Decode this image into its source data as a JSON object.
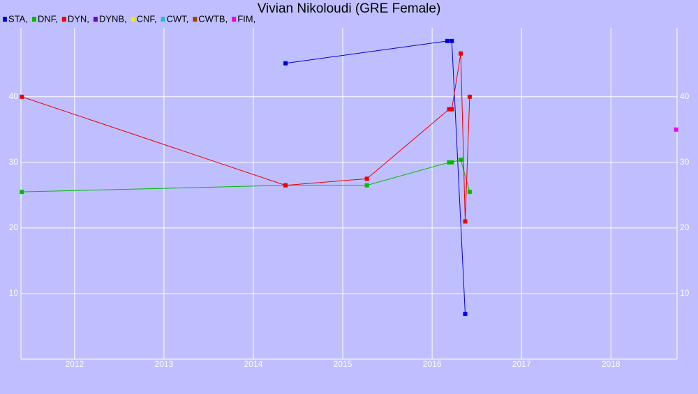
{
  "chart_data": {
    "type": "line",
    "title": "Vivian Nikoloudi (GRE Female)",
    "xlim": [
      2011.4,
      2018.74
    ],
    "ylim": [
      0,
      50.5
    ],
    "xticks": [
      2012,
      2013,
      2014,
      2015,
      2016,
      2017,
      2018
    ],
    "yticks": [
      10,
      20,
      30,
      40
    ],
    "grid": true,
    "series": [
      {
        "name": "STA,",
        "color": "#0000dd",
        "x": [
          2014.36,
          2016.17,
          2016.22,
          2016.37
        ],
        "values": [
          45.1,
          48.5,
          48.5,
          6.9
        ]
      },
      {
        "name": "DNF,",
        "color": "#00bb00",
        "x": [
          2011.41,
          2014.36,
          2015.27,
          2016.19,
          2016.22,
          2016.32,
          2016.42
        ],
        "values": [
          25.5,
          26.5,
          26.5,
          30,
          30,
          30.4,
          25.5
        ]
      },
      {
        "name": "DYN,",
        "color": "#ee0000",
        "x": [
          2011.41,
          2014.36,
          2015.27,
          2016.19,
          2016.22,
          2016.32,
          2016.37,
          2016.42
        ],
        "values": [
          40,
          26.5,
          27.5,
          38.1,
          38.1,
          46.6,
          21,
          40
        ]
      },
      {
        "name": "DYNB,",
        "color": "#6a00dd",
        "x": [],
        "values": []
      },
      {
        "name": "CNF,",
        "color": "#eeee00",
        "x": [],
        "values": []
      },
      {
        "name": "CWT,",
        "color": "#22bbdd",
        "x": [],
        "values": []
      },
      {
        "name": "CWTB,",
        "color": "#994400",
        "x": [],
        "values": []
      },
      {
        "name": "FIM,",
        "color": "#ee00ee",
        "x": [
          2018.73
        ],
        "values": [
          35
        ]
      }
    ]
  }
}
